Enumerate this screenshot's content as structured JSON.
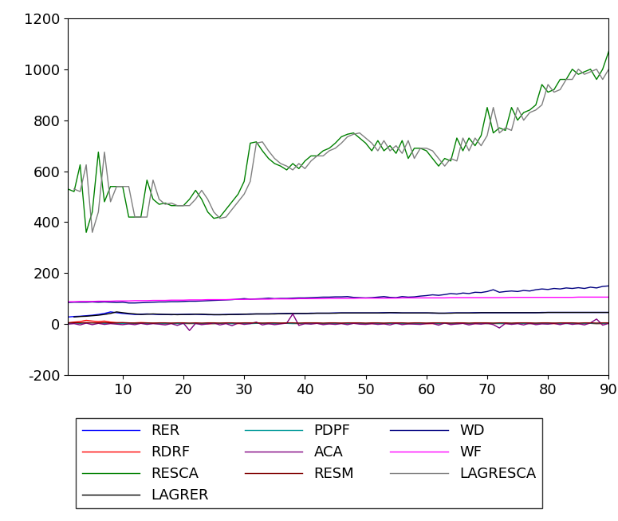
{
  "chart_data": {
    "type": "line",
    "x": [
      1,
      2,
      3,
      4,
      5,
      6,
      7,
      8,
      9,
      10,
      11,
      12,
      13,
      14,
      15,
      16,
      17,
      18,
      19,
      20,
      21,
      22,
      23,
      24,
      25,
      26,
      27,
      28,
      29,
      30,
      31,
      32,
      33,
      34,
      35,
      36,
      37,
      38,
      39,
      40,
      41,
      42,
      43,
      44,
      45,
      46,
      47,
      48,
      49,
      50,
      51,
      52,
      53,
      54,
      55,
      56,
      57,
      58,
      59,
      60,
      61,
      62,
      63,
      64,
      65,
      66,
      67,
      68,
      69,
      70,
      71,
      72,
      73,
      74,
      75,
      76,
      77,
      78,
      79,
      80,
      81,
      82,
      83,
      84,
      85,
      86,
      87,
      88,
      89,
      90
    ],
    "xlim": [
      1,
      90
    ],
    "xticks": [
      10,
      20,
      30,
      40,
      50,
      60,
      70,
      80,
      90
    ],
    "ylim": [
      -200,
      1200
    ],
    "yticks": [
      -200,
      0,
      200,
      400,
      600,
      800,
      1000,
      1200
    ],
    "legend": "lower center",
    "series": [
      {
        "name": "RER",
        "color": "#0000ff",
        "values": [
          28,
          30,
          31,
          33,
          35,
          38,
          42,
          48,
          45,
          42,
          40,
          38,
          39,
          40,
          39,
          38,
          38,
          37,
          38,
          38,
          39,
          39,
          38,
          37,
          37,
          37,
          38,
          38,
          39,
          39,
          40,
          40,
          40,
          40,
          41,
          41,
          42,
          42,
          42,
          42,
          43,
          43,
          43,
          43,
          44,
          44,
          44,
          44,
          44,
          44,
          44,
          44,
          45,
          45,
          44,
          44,
          44,
          44,
          44,
          44,
          43,
          43,
          43,
          44,
          44,
          44,
          44,
          45,
          45,
          45,
          45,
          45,
          45,
          45,
          45,
          45,
          45,
          45,
          46,
          46,
          46,
          46,
          46,
          46,
          46,
          46,
          46,
          46,
          46,
          46
        ]
      },
      {
        "name": "RDRF",
        "color": "#ff0000",
        "values": [
          5,
          8,
          10,
          15,
          12,
          10,
          12,
          8,
          6,
          5,
          4,
          5,
          6,
          5,
          4,
          3,
          2,
          3,
          4,
          3,
          2,
          3,
          2,
          1,
          2,
          3,
          4,
          3,
          2,
          3,
          3,
          4,
          3,
          2,
          3,
          4,
          3,
          3,
          2,
          3,
          3,
          3,
          2,
          2,
          3,
          3,
          4,
          3,
          3,
          2,
          2,
          3,
          2,
          3,
          3,
          2,
          2,
          3,
          3,
          2,
          2,
          2,
          3,
          2,
          2,
          3,
          2,
          2,
          3,
          2,
          2,
          3,
          2,
          2,
          3,
          3,
          2,
          2,
          3,
          3,
          2,
          2,
          3,
          3,
          2,
          2,
          3,
          2,
          2,
          3
        ]
      },
      {
        "name": "RESCA",
        "color": "#008000",
        "values": [
          530,
          520,
          625,
          360,
          440,
          675,
          480,
          540,
          540,
          540,
          420,
          420,
          420,
          565,
          490,
          470,
          475,
          465,
          465,
          465,
          490,
          525,
          490,
          440,
          415,
          420,
          450,
          480,
          510,
          560,
          710,
          715,
          680,
          650,
          630,
          620,
          605,
          630,
          610,
          640,
          660,
          660,
          680,
          690,
          710,
          735,
          745,
          750,
          730,
          710,
          680,
          720,
          680,
          700,
          670,
          720,
          650,
          690,
          690,
          680,
          650,
          620,
          650,
          640,
          730,
          680,
          730,
          700,
          740,
          850,
          750,
          770,
          760,
          850,
          800,
          830,
          840,
          860,
          940,
          910,
          920,
          960,
          960,
          1000,
          980,
          990,
          1000,
          960,
          1000,
          1070
        ]
      },
      {
        "name": "LAGRER",
        "color": "#000000",
        "values": [
          null,
          28,
          30,
          31,
          33,
          35,
          38,
          42,
          48,
          45,
          42,
          40,
          38,
          39,
          40,
          39,
          38,
          38,
          37,
          38,
          38,
          39,
          39,
          38,
          37,
          37,
          37,
          38,
          38,
          39,
          39,
          40,
          40,
          40,
          40,
          41,
          41,
          42,
          42,
          42,
          42,
          43,
          43,
          43,
          43,
          44,
          44,
          44,
          44,
          44,
          44,
          44,
          44,
          45,
          45,
          44,
          44,
          44,
          44,
          44,
          44,
          43,
          43,
          43,
          44,
          44,
          44,
          44,
          45,
          45,
          45,
          45,
          45,
          45,
          45,
          45,
          45,
          45,
          45,
          46,
          46,
          46,
          46,
          46,
          46,
          46,
          46,
          46,
          46,
          46
        ]
      },
      {
        "name": "PDPF",
        "color": "#009999",
        "values": [
          3,
          4,
          3,
          4,
          5,
          4,
          3,
          4,
          3,
          3,
          2,
          3,
          3,
          2,
          3,
          2,
          2,
          3,
          2,
          2,
          3,
          2,
          2,
          3,
          2,
          3,
          3,
          2,
          3,
          3,
          2,
          3,
          3,
          2,
          2,
          3,
          3,
          2,
          3,
          2,
          3,
          3,
          2,
          3,
          2,
          3,
          2,
          3,
          3,
          2,
          3,
          2,
          3,
          3,
          2,
          3,
          2,
          3,
          2,
          3,
          3,
          2,
          3,
          3,
          2,
          3,
          2,
          3,
          3,
          2,
          3,
          2,
          3,
          2,
          3,
          3,
          2,
          3,
          3,
          2,
          3,
          3,
          2,
          3,
          2,
          3,
          3,
          2,
          3,
          3
        ]
      },
      {
        "name": "ACA",
        "color": "#800080",
        "values": [
          0,
          2,
          -3,
          4,
          -2,
          3,
          -1,
          2,
          0,
          -2,
          1,
          -2,
          3,
          -1,
          2,
          0,
          -3,
          2,
          -5,
          4,
          -25,
          3,
          -2,
          1,
          5,
          -3,
          2,
          -6,
          4,
          -1,
          2,
          8,
          -3,
          2,
          -2,
          1,
          4,
          40,
          -5,
          2,
          0,
          3,
          -2,
          1,
          -1,
          2,
          -2,
          3,
          0,
          -1,
          2,
          -1,
          1,
          -3,
          4,
          -2,
          1,
          0,
          -1,
          2,
          3,
          -4,
          5,
          -2,
          1,
          3,
          -3,
          2,
          0,
          4,
          -2,
          -15,
          3,
          -1,
          2,
          -3,
          4,
          -2,
          1,
          0,
          3,
          -2,
          4,
          -1,
          2,
          -3,
          5,
          20,
          -4,
          3
        ]
      },
      {
        "name": "RESM",
        "color": "#800000",
        "values": [
          5,
          6,
          5,
          6,
          5,
          5,
          6,
          5,
          5,
          6,
          5,
          4,
          5,
          5,
          4,
          5,
          5,
          4,
          5,
          5,
          4,
          5,
          4,
          5,
          5,
          4,
          5,
          5,
          4,
          5,
          5,
          5,
          4,
          5,
          5,
          4,
          5,
          5,
          4,
          5,
          5,
          5,
          4,
          5,
          5,
          4,
          5,
          5,
          5,
          4,
          5,
          5,
          4,
          5,
          5,
          5,
          4,
          5,
          5,
          4,
          5,
          5,
          5,
          4,
          5,
          5,
          4,
          5,
          5,
          5,
          4,
          5,
          5,
          4,
          5,
          5,
          5,
          4,
          5,
          5,
          4,
          5,
          5,
          5,
          4,
          5,
          5,
          4,
          5,
          5
        ]
      },
      {
        "name": "WD",
        "color": "#000080",
        "values": [
          85,
          86,
          86,
          86,
          87,
          86,
          87,
          86,
          85,
          86,
          83,
          83,
          84,
          85,
          86,
          87,
          87,
          88,
          88,
          89,
          90,
          90,
          91,
          92,
          93,
          94,
          95,
          96,
          98,
          100,
          98,
          99,
          100,
          102,
          100,
          101,
          101,
          102,
          103,
          103,
          104,
          105,
          106,
          106,
          107,
          107,
          108,
          105,
          104,
          103,
          104,
          106,
          108,
          105,
          104,
          108,
          106,
          107,
          110,
          112,
          115,
          113,
          116,
          120,
          118,
          122,
          120,
          125,
          124,
          128,
          135,
          125,
          128,
          130,
          128,
          132,
          130,
          135,
          138,
          136,
          140,
          138,
          142,
          140,
          143,
          140,
          145,
          142,
          148,
          150
        ]
      },
      {
        "name": "WF",
        "color": "#ff00ff",
        "values": [
          88,
          88,
          89,
          89,
          89,
          90,
          90,
          90,
          91,
          91,
          91,
          92,
          92,
          92,
          93,
          93,
          93,
          94,
          94,
          94,
          95,
          95,
          95,
          96,
          96,
          96,
          96,
          97,
          97,
          97,
          98,
          98,
          98,
          98,
          99,
          99,
          99,
          99,
          100,
          100,
          100,
          100,
          100,
          101,
          101,
          101,
          101,
          101,
          102,
          102,
          102,
          102,
          102,
          102,
          102,
          103,
          103,
          103,
          103,
          103,
          103,
          103,
          103,
          104,
          104,
          104,
          104,
          104,
          104,
          104,
          104,
          104,
          104,
          105,
          105,
          105,
          105,
          105,
          105,
          105,
          105,
          105,
          105,
          105,
          106,
          106,
          106,
          106,
          106,
          106
        ]
      },
      {
        "name": "LAGRESCA",
        "color": "#808080",
        "values": [
          null,
          530,
          520,
          625,
          360,
          440,
          675,
          480,
          540,
          540,
          540,
          420,
          420,
          420,
          565,
          490,
          470,
          475,
          465,
          465,
          465,
          490,
          525,
          490,
          440,
          415,
          420,
          450,
          480,
          510,
          560,
          710,
          715,
          680,
          650,
          630,
          620,
          605,
          630,
          610,
          640,
          660,
          660,
          680,
          690,
          710,
          735,
          745,
          750,
          730,
          710,
          680,
          720,
          680,
          700,
          670,
          720,
          650,
          690,
          690,
          680,
          650,
          620,
          650,
          640,
          730,
          680,
          730,
          700,
          740,
          850,
          750,
          770,
          760,
          850,
          800,
          830,
          840,
          860,
          940,
          910,
          920,
          960,
          960,
          1000,
          980,
          990,
          1000,
          960,
          1000
        ]
      }
    ]
  }
}
